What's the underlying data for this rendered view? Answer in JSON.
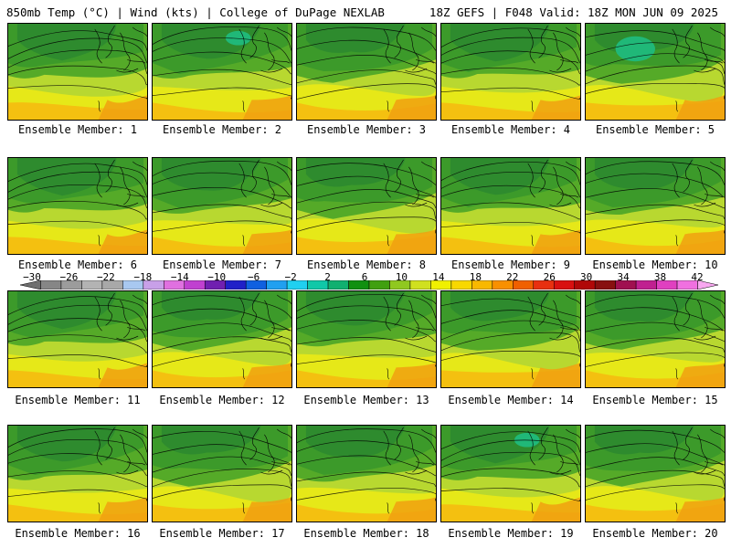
{
  "header": {
    "left": "850mb Temp (°C) | Wind (kts) | College of DuPage NEXLAB",
    "right": "18Z GEFS | F048 Valid: 18Z MON JUN 09 2025"
  },
  "members": [
    {
      "label": "Ensemble Member: 1"
    },
    {
      "label": "Ensemble Member: 2"
    },
    {
      "label": "Ensemble Member: 3"
    },
    {
      "label": "Ensemble Member: 4"
    },
    {
      "label": "Ensemble Member: 5"
    },
    {
      "label": "Ensemble Member: 6"
    },
    {
      "label": "Ensemble Member: 7"
    },
    {
      "label": "Ensemble Member: 8"
    },
    {
      "label": "Ensemble Member: 9"
    },
    {
      "label": "Ensemble Member: 10"
    },
    {
      "label": "Ensemble Member: 11"
    },
    {
      "label": "Ensemble Member: 12"
    },
    {
      "label": "Ensemble Member: 13"
    },
    {
      "label": "Ensemble Member: 14"
    },
    {
      "label": "Ensemble Member: 15"
    },
    {
      "label": "Ensemble Member: 16"
    },
    {
      "label": "Ensemble Member: 17"
    },
    {
      "label": "Ensemble Member: 18"
    },
    {
      "label": "Ensemble Member: 19"
    },
    {
      "label": "Ensemble Member: 20"
    }
  ],
  "colorbar": {
    "ticks": [
      "−30",
      "−26",
      "−22",
      "−18",
      "−14",
      "−10",
      "−6",
      "−2",
      "2",
      "6",
      "10",
      "14",
      "18",
      "22",
      "26",
      "30",
      "34",
      "38",
      "42"
    ],
    "colors": [
      "#6f6f6f",
      "#868686",
      "#9c9c9c",
      "#b3b3b3",
      "#a8a8a8",
      "#a8c8f0",
      "#c8a0e8",
      "#e070e0",
      "#c040d0",
      "#7020b0",
      "#2020c8",
      "#1060e0",
      "#20a0f0",
      "#20d0f0",
      "#10c8a8",
      "#10b070",
      "#109010",
      "#40a010",
      "#90c820",
      "#d0e020",
      "#f0f000",
      "#f8d800",
      "#f8b800",
      "#f89000",
      "#f06000",
      "#e83010",
      "#d81010",
      "#b00808",
      "#881010",
      "#a01050",
      "#c02090",
      "#e040c0",
      "#f070e0",
      "#f8a8f0"
    ]
  }
}
